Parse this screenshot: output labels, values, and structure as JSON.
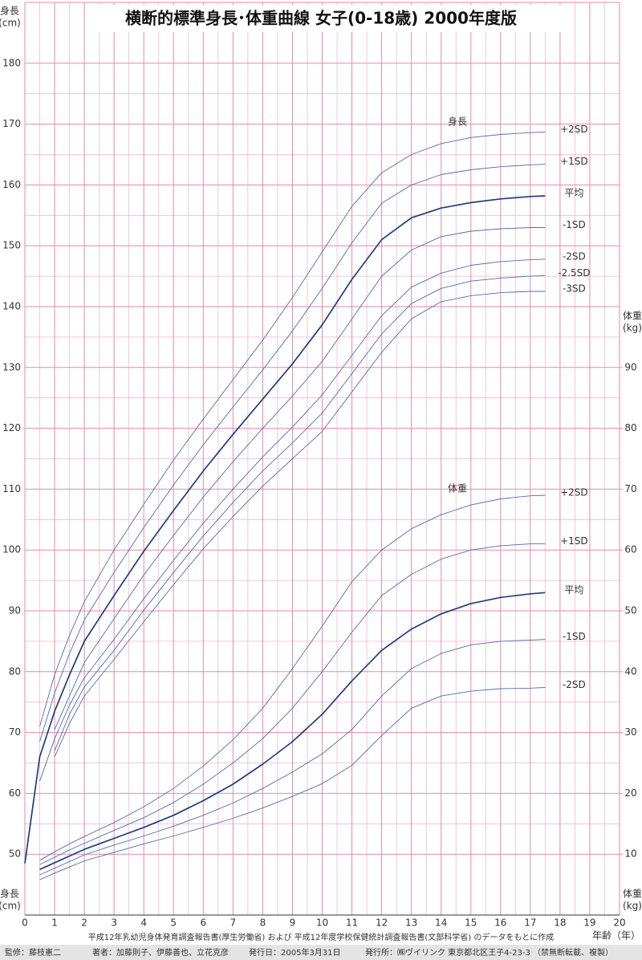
{
  "chart_data": {
    "type": "line",
    "title": "横断的標準身長･体重曲線 女子(0-18歳) 2000年度版",
    "y_label": [
      "身長",
      "(cm)"
    ],
    "y2_label": [
      "体重",
      "(kg)"
    ],
    "x_label": "年齢（年）",
    "annotations": [
      "身長",
      "体重"
    ],
    "source": "平成12年乳幼児身体発育調査報告書(厚生労働省) および 平成12年度学校保健統計調査報告書(文部科学省) のデータをもとに作成",
    "footer": [
      "監修：藤枝憲二",
      "著者：加藤則子、伊藤善也、立花克彦",
      "発行日：2005年3月31日",
      "発行所：㈱ヴイリンク 東京都北区王子4-23-3 （禁無断転載、複製）"
    ],
    "grid": true,
    "xlim": [
      0,
      20
    ],
    "xticks": [
      0,
      1,
      2,
      3,
      4,
      5,
      6,
      7,
      8,
      9,
      10,
      11,
      12,
      13,
      14,
      15,
      16,
      17,
      18,
      19,
      20
    ],
    "ylim": [
      40,
      190
    ],
    "yticks": [
      50,
      60,
      70,
      80,
      90,
      100,
      110,
      120,
      130,
      140,
      150,
      160,
      170,
      180
    ],
    "y2lim": [
      0,
      150
    ],
    "y2ticks": [
      10,
      20,
      30,
      40,
      50,
      60,
      70,
      80,
      90
    ],
    "x": [
      0,
      0.5,
      1,
      1.5,
      2,
      3,
      4,
      5,
      6,
      7,
      8,
      9,
      10,
      11,
      12,
      13,
      14,
      15,
      16,
      17,
      17.5
    ],
    "series": [
      {
        "name": "+2SD",
        "color": "#4d6db0",
        "values": [
          null,
          71,
          79.5,
          86,
          91.5,
          100,
          107.5,
          114.8,
          121.5,
          128,
          134.5,
          141.5,
          149,
          156.5,
          162,
          165,
          166.8,
          167.8,
          168.3,
          168.6,
          168.7
        ]
      },
      {
        "name": "+1SD",
        "color": "#4d6db0",
        "values": [
          null,
          68.5,
          76.5,
          83,
          88.5,
          96.3,
          103.7,
          110.7,
          117.3,
          123.5,
          129.6,
          136,
          143,
          150.5,
          157,
          160,
          161.7,
          162.5,
          163,
          163.3,
          163.4
        ]
      },
      {
        "name": "平均",
        "color": "#1b3f80",
        "values": [
          48.5,
          66,
          73.5,
          79.5,
          85,
          92.5,
          99.8,
          106.5,
          113,
          119,
          124.8,
          130.6,
          137,
          144.5,
          151,
          154.6,
          156.2,
          157.1,
          157.7,
          158.1,
          158.2
        ]
      },
      {
        "name": "-1SD",
        "color": "#4d6db0",
        "values": [
          null,
          null,
          70.5,
          76,
          81.5,
          88.7,
          95.9,
          102.4,
          108.7,
          114.5,
          120,
          125.3,
          131,
          138,
          145,
          149.3,
          151.5,
          152.4,
          152.8,
          153,
          153
        ]
      },
      {
        "name": "-2SD",
        "color": "#4d6db0",
        "values": [
          null,
          62,
          69,
          74.5,
          79,
          85.3,
          92,
          98.3,
          104.4,
          110,
          115.3,
          120.2,
          125.5,
          132,
          138.5,
          143.2,
          145.5,
          146.8,
          147.4,
          147.7,
          147.8
        ]
      },
      {
        "name": "-2.5SD",
        "color": "#4d6db0",
        "values": [
          null,
          null,
          67,
          73,
          77.5,
          83.5,
          90.1,
          96.3,
          102.3,
          107.8,
          113,
          117.6,
          122.5,
          129,
          135.5,
          140.5,
          143,
          144.2,
          144.7,
          145,
          145.1
        ]
      },
      {
        "name": "-3SD",
        "color": "#4d6db0",
        "values": [
          null,
          null,
          66,
          71.5,
          76,
          82,
          88.2,
          94.3,
          100.2,
          105.5,
          110.5,
          115,
          119.5,
          126,
          132.5,
          138,
          140.8,
          141.8,
          142.3,
          142.5,
          142.5
        ]
      },
      {
        "name": "+2SD",
        "axis": "y2",
        "color": "#4d6db0",
        "values": [
          null,
          9,
          10.4,
          11.7,
          12.9,
          15.2,
          17.8,
          20.8,
          24.5,
          28.8,
          34,
          40.5,
          47.5,
          54.8,
          60,
          63.5,
          65.8,
          67.4,
          68.4,
          68.9,
          69
        ]
      },
      {
        "name": "+1SD",
        "axis": "y2",
        "color": "#4d6db0",
        "values": [
          null,
          8.3,
          9.5,
          10.7,
          11.8,
          13.9,
          16,
          18.5,
          21.5,
          25,
          29,
          34,
          40,
          46.5,
          52.5,
          56,
          58.5,
          60,
          60.7,
          61,
          61
        ]
      },
      {
        "name": "平均",
        "axis": "y2",
        "color": "#1b3f80",
        "values": [
          null,
          7.5,
          8.6,
          9.7,
          10.8,
          12.6,
          14.4,
          16.4,
          18.8,
          21.5,
          24.8,
          28.5,
          33,
          38.5,
          43.5,
          47,
          49.5,
          51.2,
          52.2,
          52.8,
          53
        ]
      },
      {
        "name": "-1SD",
        "axis": "y2",
        "color": "#4d6db0",
        "values": [
          null,
          6.6,
          7.7,
          8.8,
          9.9,
          11.5,
          13,
          14.6,
          16.4,
          18.4,
          20.8,
          23.5,
          26.5,
          30.5,
          36,
          40.5,
          43,
          44.4,
          45,
          45.2,
          45.3
        ]
      },
      {
        "name": "-2SD",
        "axis": "y2",
        "color": "#4d6db0",
        "values": [
          null,
          5.8,
          6.9,
          7.9,
          8.9,
          10.3,
          11.7,
          13,
          14.4,
          15.9,
          17.6,
          19.5,
          21.6,
          24.6,
          29.5,
          34,
          36,
          36.8,
          37.2,
          37.3,
          37.4
        ]
      }
    ]
  }
}
